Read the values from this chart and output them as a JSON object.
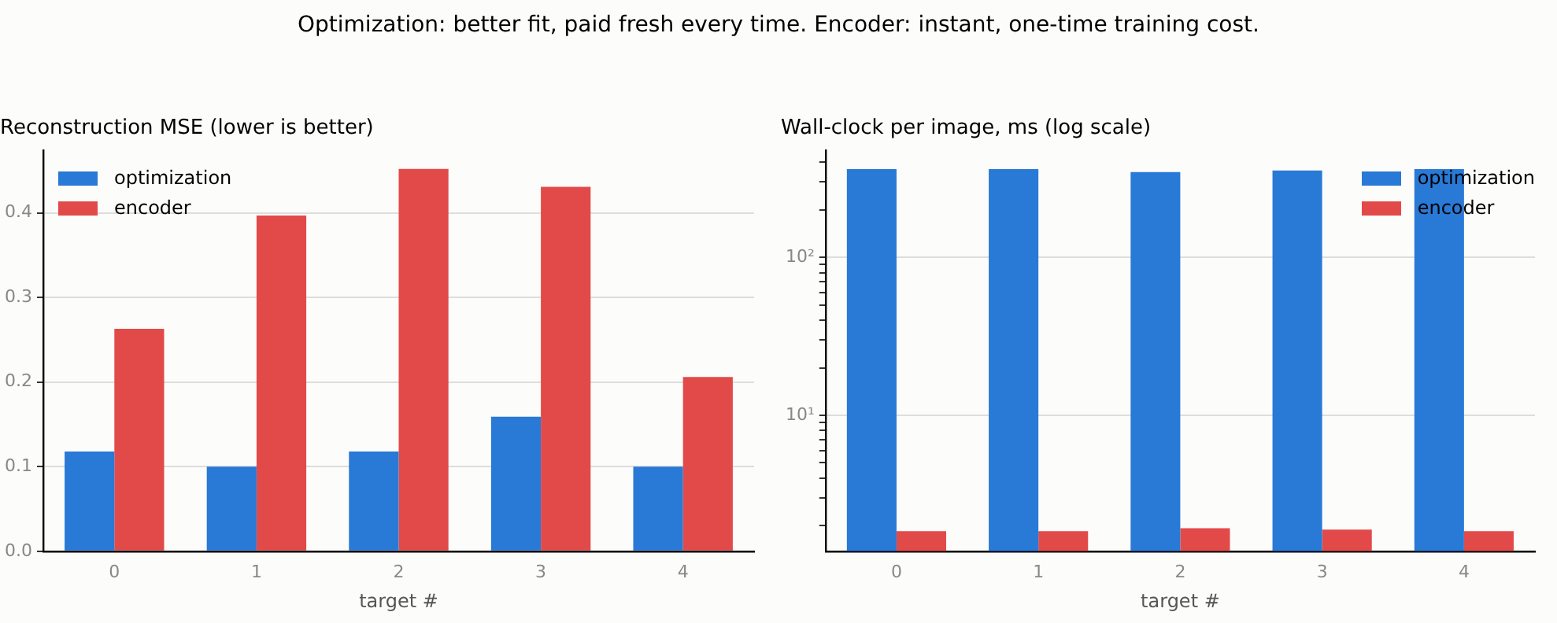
{
  "chart_data": [
    {
      "type": "bar",
      "title": "Reconstruction MSE (lower is better)",
      "xlabel": "target #",
      "annotations": [
        "Optimization: better fit, paid fresh every time. Encoder: instant, one-time training cost."
      ],
      "categories": [
        "0",
        "1",
        "2",
        "3",
        "4"
      ],
      "series": [
        {
          "name": "optimization",
          "color": "#2979d6",
          "values": [
            0.118,
            0.1,
            0.118,
            0.159,
            0.1
          ]
        },
        {
          "name": "encoder",
          "color": "#e24a4a",
          "values": [
            0.263,
            0.397,
            0.452,
            0.431,
            0.206
          ]
        }
      ],
      "ylim": [
        0,
        0.474
      ],
      "yticks": [
        {
          "value": 0,
          "label": "0.0"
        },
        0.1,
        0.2,
        0.3,
        0.4
      ],
      "grid": "y",
      "legend": "top left"
    },
    {
      "type": "bar",
      "title": "Wall-clock per image, ms (log scale)",
      "xlabel": "target #",
      "categories": [
        "0",
        "1",
        "2",
        "3",
        "4"
      ],
      "series": [
        {
          "name": "optimization",
          "color": "#2979d6",
          "values": [
            362,
            362,
            346,
            354,
            362
          ]
        },
        {
          "name": "encoder",
          "color": "#e24a4a",
          "values": [
            1.85,
            1.85,
            1.93,
            1.89,
            1.85
          ]
        }
      ],
      "log": "y",
      "ylim": [
        1.38,
        475
      ],
      "yticks": [
        {
          "value": 2,
          "label": null
        },
        {
          "value": 3,
          "label": null
        },
        {
          "value": 4,
          "label": null
        },
        {
          "value": 5,
          "label": null
        },
        {
          "value": 6,
          "label": null
        },
        {
          "value": 7,
          "label": null
        },
        {
          "value": 8,
          "label": null
        },
        {
          "value": 9,
          "label": null
        },
        {
          "value": 10,
          "label": "10¹"
        },
        {
          "value": 20,
          "label": null
        },
        {
          "value": 30,
          "label": null
        },
        {
          "value": 40,
          "label": null
        },
        {
          "value": 50,
          "label": null
        },
        {
          "value": 60,
          "label": null
        },
        {
          "value": 70,
          "label": null
        },
        {
          "value": 80,
          "label": null
        },
        {
          "value": 90,
          "label": null
        },
        {
          "value": 100,
          "label": "10²"
        },
        {
          "value": 200,
          "label": null
        },
        {
          "value": 300,
          "label": null
        },
        {
          "value": 400,
          "label": null
        }
      ],
      "grid": "y",
      "legend": "top right"
    }
  ]
}
